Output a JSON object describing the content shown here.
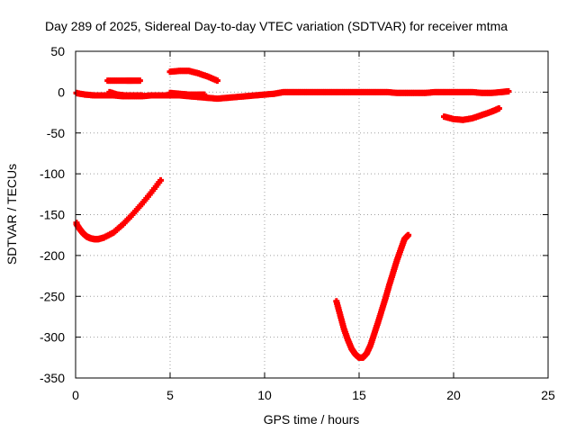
{
  "chart_data": {
    "type": "scatter",
    "title": "Day 289 of 2025, Sidereal Day-to-day VTEC variation (SDTVAR) for receiver mtma",
    "xlabel": "GPS time / hours",
    "ylabel": "SDTVAR / TECUs",
    "xlim": [
      0,
      25
    ],
    "ylim": [
      -350,
      50
    ],
    "xticks": [
      0,
      5,
      10,
      15,
      20,
      25
    ],
    "yticks": [
      50,
      0,
      -50,
      -100,
      -150,
      -200,
      -250,
      -300,
      -350
    ],
    "grid": true,
    "legend": "none",
    "series": [
      {
        "color": "#ff0000",
        "segments": [
          [
            [
              0,
              -1
            ],
            [
              0.5,
              -3
            ],
            [
              1,
              -4
            ],
            [
              1.5,
              -4
            ],
            [
              2,
              -4
            ],
            [
              2.5,
              -5
            ],
            [
              3,
              -5
            ],
            [
              3.5,
              -5
            ],
            [
              4,
              -4
            ],
            [
              4.5,
              -4
            ],
            [
              5,
              -4
            ],
            [
              5.5,
              -4
            ],
            [
              6,
              -5
            ],
            [
              6.5,
              -6
            ],
            [
              7,
              -7
            ],
            [
              7.5,
              -8
            ],
            [
              8,
              -7
            ],
            [
              8.5,
              -6
            ],
            [
              9,
              -5
            ],
            [
              9.5,
              -4
            ],
            [
              10,
              -3
            ],
            [
              10.5,
              -2
            ],
            [
              11,
              0
            ],
            [
              11.5,
              0
            ],
            [
              12,
              0
            ],
            [
              12.5,
              0
            ],
            [
              13,
              0
            ],
            [
              13.5,
              0
            ],
            [
              14,
              0
            ],
            [
              14.5,
              0
            ],
            [
              15,
              0
            ],
            [
              15.5,
              0
            ],
            [
              16,
              0
            ],
            [
              16.5,
              0
            ],
            [
              17,
              -1
            ],
            [
              17.5,
              -1
            ],
            [
              18,
              -1
            ],
            [
              18.5,
              -1
            ],
            [
              19,
              0
            ],
            [
              19.5,
              0
            ],
            [
              20,
              0
            ],
            [
              20.5,
              0
            ],
            [
              21,
              0
            ],
            [
              21.5,
              -1
            ],
            [
              22,
              -1
            ],
            [
              22.5,
              0
            ],
            [
              22.9,
              1
            ]
          ],
          [
            [
              1.7,
              14
            ],
            [
              2.2,
              14
            ],
            [
              2.7,
              14
            ],
            [
              3.0,
              14
            ],
            [
              3.4,
              14
            ]
          ],
          [
            [
              1.8,
              0
            ],
            [
              2.2,
              -3
            ],
            [
              2.6,
              -4
            ],
            [
              3.0,
              -4
            ],
            [
              3.5,
              -4
            ]
          ],
          [
            [
              5.0,
              -1
            ],
            [
              5.5,
              -2
            ],
            [
              6.0,
              -3
            ],
            [
              6.5,
              -3
            ],
            [
              6.8,
              -3
            ]
          ],
          [
            [
              5.0,
              25
            ],
            [
              5.5,
              26
            ],
            [
              6.0,
              26
            ],
            [
              6.5,
              23
            ],
            [
              7.0,
              19
            ],
            [
              7.5,
              14
            ]
          ],
          [
            [
              0,
              -160
            ],
            [
              0.2,
              -167
            ],
            [
              0.4,
              -173
            ],
            [
              0.6,
              -177
            ],
            [
              0.8,
              -179
            ],
            [
              1.0,
              -180
            ],
            [
              1.2,
              -180
            ],
            [
              1.5,
              -178
            ],
            [
              2.0,
              -172
            ],
            [
              2.5,
              -162
            ],
            [
              3.0,
              -150
            ],
            [
              3.5,
              -137
            ],
            [
              4.0,
              -123
            ],
            [
              4.5,
              -108
            ]
          ],
          [
            [
              13.8,
              -256
            ],
            [
              14.0,
              -273
            ],
            [
              14.2,
              -290
            ],
            [
              14.4,
              -303
            ],
            [
              14.6,
              -314
            ],
            [
              14.8,
              -321
            ],
            [
              15.0,
              -325
            ],
            [
              15.2,
              -325
            ],
            [
              15.4,
              -320
            ],
            [
              15.6,
              -310
            ],
            [
              15.8,
              -296
            ],
            [
              16.0,
              -282
            ],
            [
              16.2,
              -267
            ],
            [
              16.4,
              -252
            ],
            [
              16.6,
              -236
            ],
            [
              16.8,
              -221
            ],
            [
              17.0,
              -206
            ],
            [
              17.2,
              -193
            ],
            [
              17.4,
              -180
            ],
            [
              17.6,
              -175
            ]
          ],
          [
            [
              19.5,
              -30
            ],
            [
              20.0,
              -33
            ],
            [
              20.5,
              -34
            ],
            [
              21.0,
              -32
            ],
            [
              21.5,
              -28
            ],
            [
              22.0,
              -24
            ],
            [
              22.4,
              -20
            ]
          ]
        ]
      }
    ]
  }
}
